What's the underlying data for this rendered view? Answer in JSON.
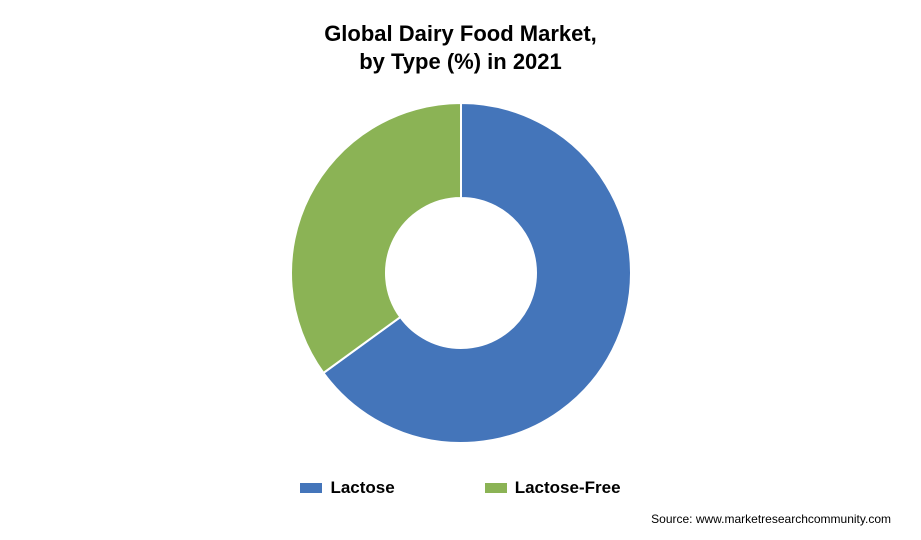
{
  "chart": {
    "type": "donut",
    "title_line1": "Global Dairy Food Market,",
    "title_line2": "by Type (%) in 2021",
    "title_fontsize": 22,
    "title_color": "#000000",
    "background_color": "#ffffff",
    "outer_radius": 170,
    "inner_radius": 75,
    "stroke_color": "#ffffff",
    "stroke_width": 2,
    "series": [
      {
        "label": "Lactose",
        "value": 65,
        "color": "#4475ba"
      },
      {
        "label": "Lactose-Free",
        "value": 35,
        "color": "#8bb355"
      }
    ],
    "legend_fontsize": 17,
    "legend_color": "#000000",
    "source_text": "Source: www.marketresearchcommunity.com",
    "source_fontsize": 12
  }
}
